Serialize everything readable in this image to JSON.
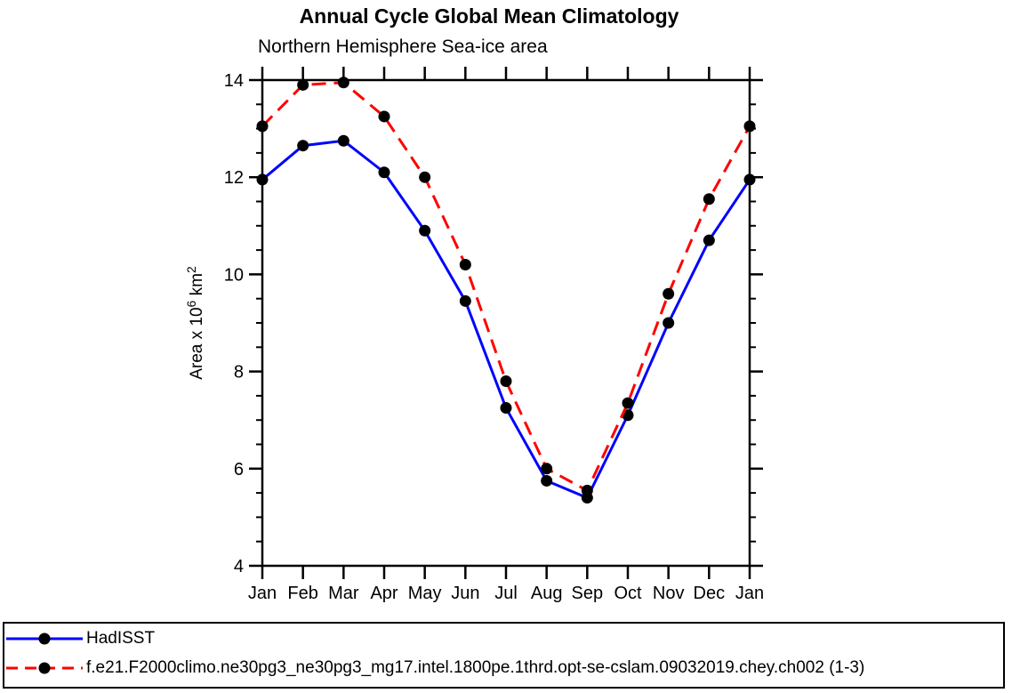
{
  "title": "Annual Cycle Global Mean Climatology",
  "subtitle": "Northern Hemisphere Sea-ice area",
  "chart_data": {
    "type": "line",
    "title": "Annual Cycle Global Mean Climatology",
    "subtitle": "Northern Hemisphere Sea-ice area",
    "xlabel": "",
    "ylabel": "Area x 10^6 km^2",
    "ylabel_rich": [
      {
        "text": "Area x 10"
      },
      {
        "text": "6",
        "sup": true
      },
      {
        "text": " km"
      },
      {
        "text": "2",
        "sup": true
      }
    ],
    "categories": [
      "Jan",
      "Feb",
      "Mar",
      "Apr",
      "May",
      "Jun",
      "Jul",
      "Aug",
      "Sep",
      "Oct",
      "Nov",
      "Dec",
      "Jan"
    ],
    "ylim": [
      4,
      14
    ],
    "y_major_ticks": [
      4,
      6,
      8,
      10,
      12,
      14
    ],
    "y_minor_step": 0.5,
    "grid": false,
    "legend_position": "bottom-box",
    "axis_color": "#000000",
    "marker_color": "#000000",
    "series": [
      {
        "name": "HadISST",
        "color": "#0000ff",
        "style": "solid",
        "marker": "circle",
        "values": [
          11.95,
          12.65,
          12.75,
          12.1,
          10.9,
          9.45,
          7.25,
          5.75,
          5.4,
          7.1,
          9.0,
          10.7,
          11.95
        ]
      },
      {
        "name": "f.e21.F2000climo.ne30pg3_ne30pg3_mg17.intel.1800pe.1thrd.opt-se-cslam.09032019.chey.ch002 (1-3)",
        "color": "#ff0000",
        "style": "dashed",
        "marker": "circle",
        "values": [
          13.05,
          13.9,
          13.95,
          13.25,
          12.0,
          10.2,
          7.8,
          6.0,
          5.55,
          7.35,
          9.6,
          11.55,
          13.05
        ]
      }
    ]
  }
}
